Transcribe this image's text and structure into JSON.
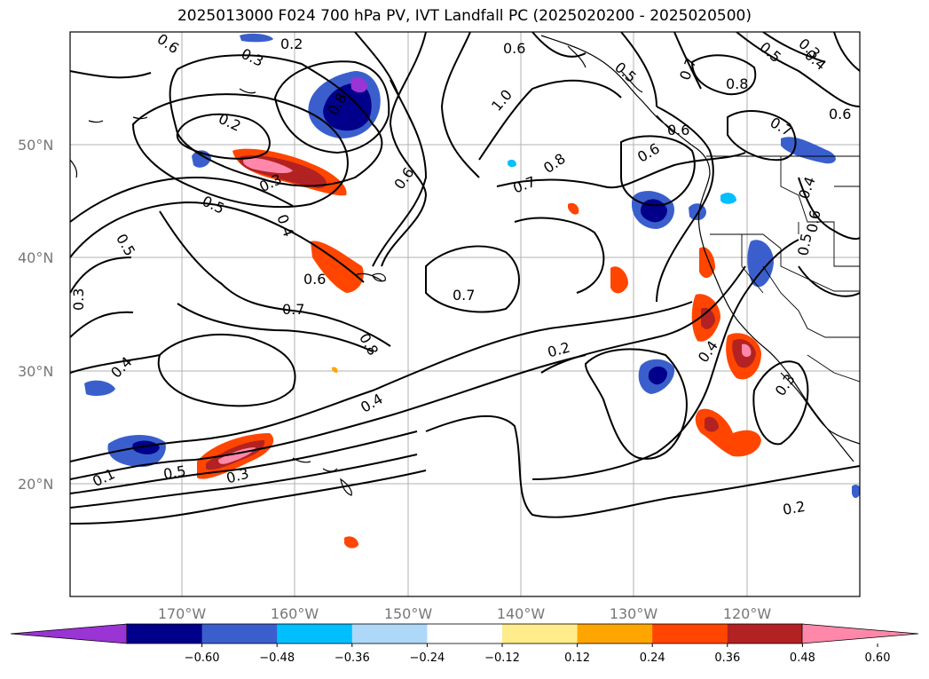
{
  "title": "2025013000 F024 700 hPa PV, IVT Landfall PC (2025020200 - 2025020500)",
  "latitude_labels": [
    "50°N",
    "40°N",
    "30°N",
    "20°N"
  ],
  "longitude_labels": [
    "170°W",
    "160°W",
    "150°W",
    "140°W",
    "130°W",
    "120°W"
  ],
  "colorbar": {
    "tick_labels": [
      "−0.60",
      "−0.48",
      "−0.36",
      "−0.24",
      "−0.12",
      "0.12",
      "0.24",
      "0.36",
      "0.48",
      "0.60"
    ],
    "colors": [
      "#9a34d4",
      "#00008b",
      "#3a5fcd",
      "#00bfff",
      "#add8f8",
      "#ffffff",
      "#ffec8b",
      "#ffa500",
      "#ff4500",
      "#b22222",
      "#ff88aa"
    ]
  },
  "contour_labels": [
    "0.6",
    "0.2",
    "0.3",
    "0.8",
    "0.2",
    "0.3",
    "0.5",
    "0.4",
    "0.5",
    "0.3",
    "0.4",
    "0.6",
    "0.7",
    "0.8",
    "0.4",
    "0.5",
    "0.3",
    "0.1",
    "0.6",
    "1.0",
    "0.6",
    "0.7",
    "0.8",
    "0.7",
    "0.2",
    "0.4",
    "0.3",
    "0.6",
    "0.5",
    "0.7",
    "0.8",
    "0.3",
    "0.4",
    "0.6",
    "0.7",
    "0.6",
    "0.5",
    "0.4",
    "0.6",
    "0.2",
    "0.5"
  ]
}
